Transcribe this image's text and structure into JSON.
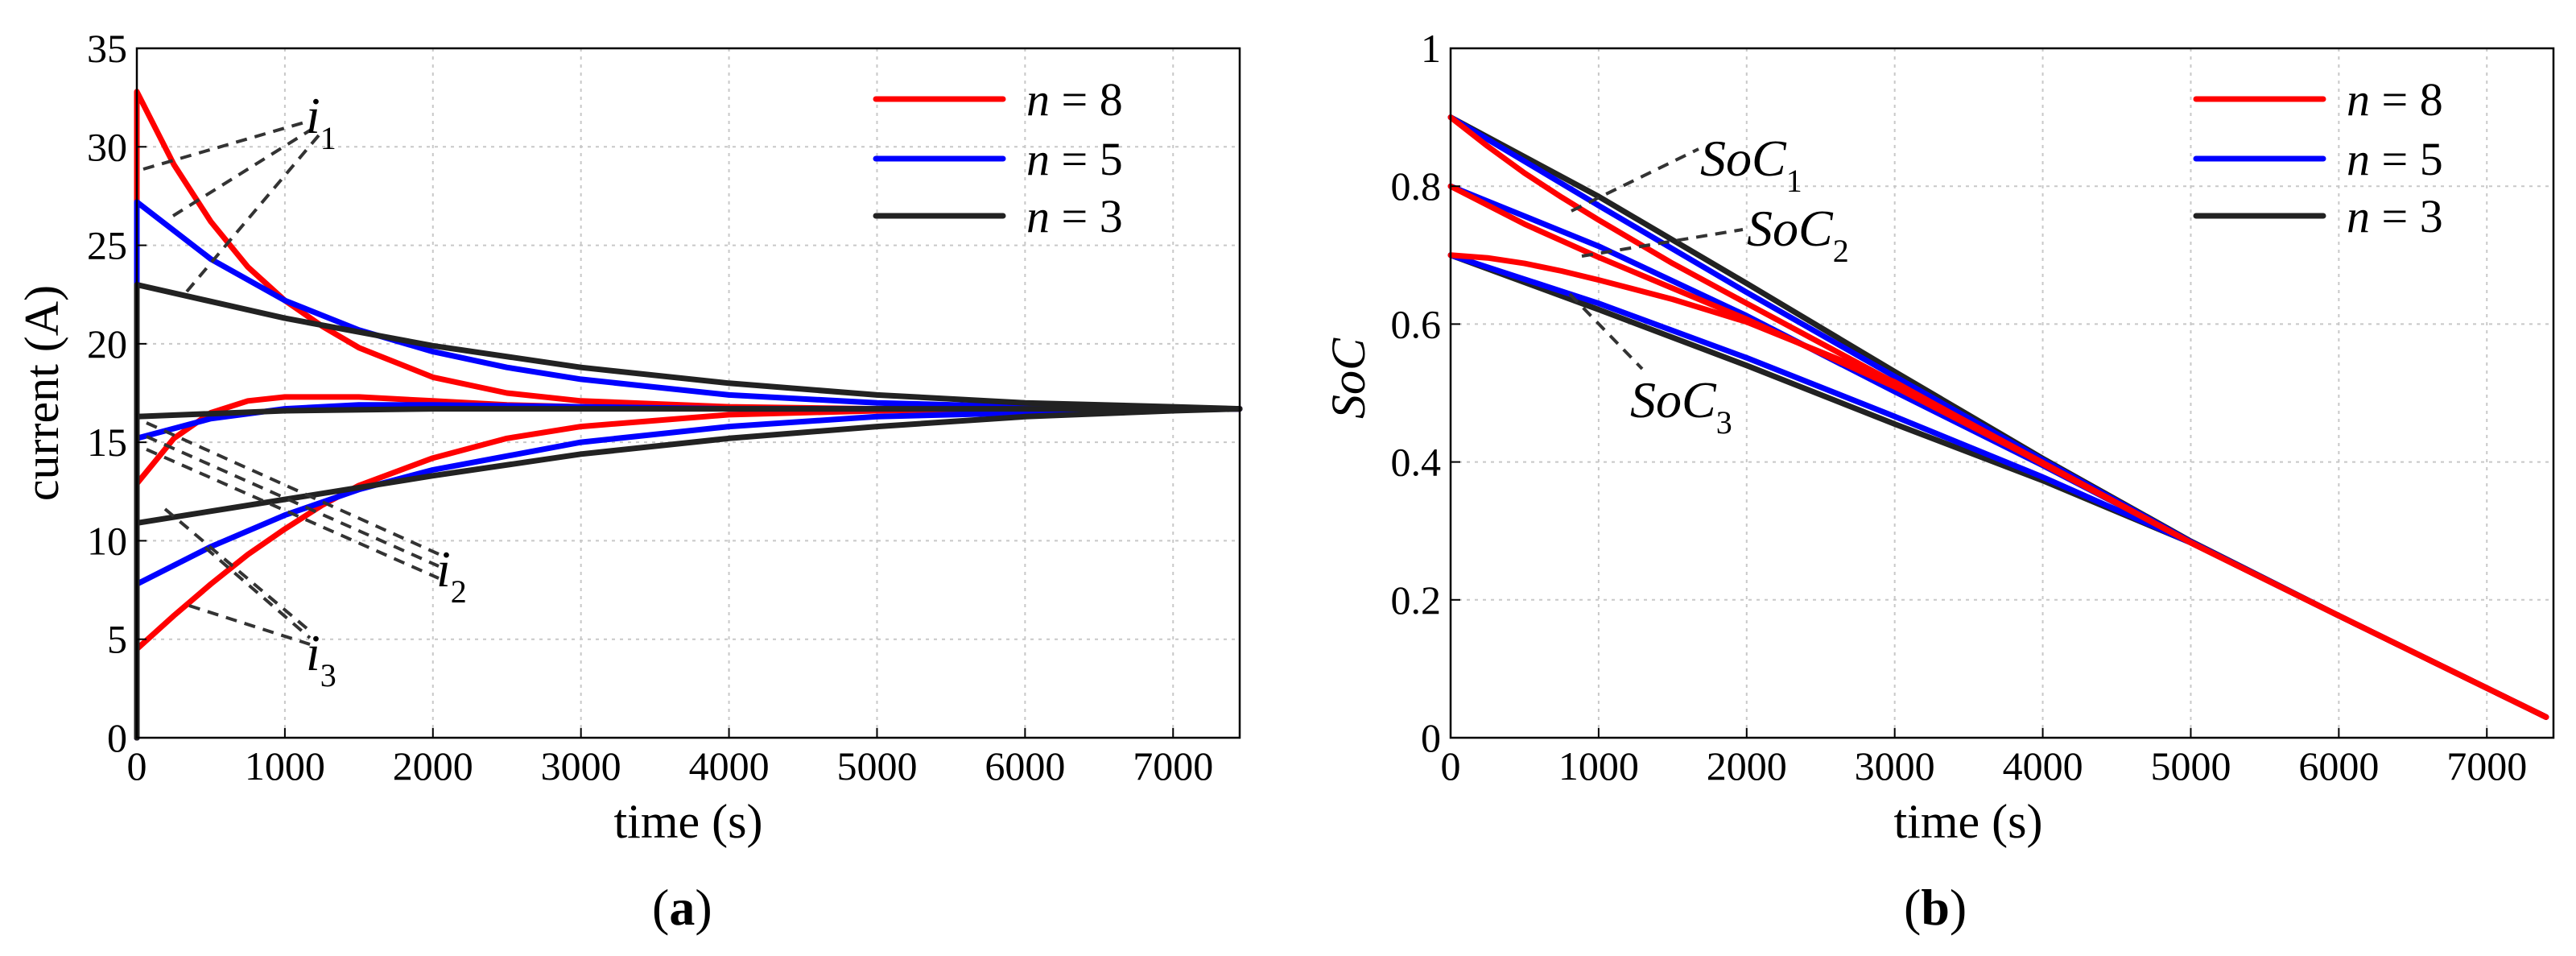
{
  "colors": {
    "n8": "#ff0000",
    "n5": "#0000ff",
    "n3": "#222222"
  },
  "chart_data": [
    {
      "type": "line",
      "panel": "a",
      "caption_open": "(",
      "caption_letter": "a",
      "caption_close": ")",
      "xlabel": "time (s)",
      "ylabel": "current (A)",
      "xlim": [
        0,
        7450
      ],
      "ylim": [
        0,
        35
      ],
      "xticks": [
        "0",
        "1000",
        "2000",
        "3000",
        "4000",
        "5000",
        "6000",
        "7000"
      ],
      "yticks": [
        "0",
        "5",
        "10",
        "15",
        "20",
        "25",
        "30",
        "35"
      ],
      "legend": [
        {
          "key": "n8",
          "var": "n",
          "eq": " = 8"
        },
        {
          "key": "n5",
          "var": "n",
          "eq": " = 5"
        },
        {
          "key": "n3",
          "var": "n",
          "eq": " = 3"
        }
      ],
      "annotations": [
        {
          "label": "i",
          "sub": "1"
        },
        {
          "label": "i",
          "sub": "2"
        },
        {
          "label": "i",
          "sub": "3"
        }
      ],
      "series": [
        {
          "name": "n = 8, i1",
          "key": "n8",
          "x": [
            0,
            250,
            500,
            750,
            1000,
            1250,
            1500,
            2000,
            2500,
            3000,
            4000,
            5000,
            6000,
            7450
          ],
          "y": [
            32.8,
            29.1,
            26.2,
            23.9,
            22.2,
            20.9,
            19.8,
            18.3,
            17.5,
            17.1,
            16.8,
            16.7,
            16.7,
            16.7
          ]
        },
        {
          "name": "n = 8, i2",
          "key": "n8",
          "x": [
            0,
            250,
            500,
            750,
            1000,
            1250,
            1500,
            2000,
            2500,
            3000,
            4000,
            5000,
            7450
          ],
          "y": [
            12.9,
            15.2,
            16.5,
            17.1,
            17.3,
            17.3,
            17.3,
            17.1,
            16.9,
            16.8,
            16.7,
            16.7,
            16.7
          ]
        },
        {
          "name": "n = 8, i3",
          "key": "n8",
          "x": [
            0,
            250,
            500,
            750,
            1000,
            1250,
            1500,
            2000,
            2500,
            3000,
            4000,
            5000,
            6000,
            7450
          ],
          "y": [
            4.5,
            6.2,
            7.8,
            9.3,
            10.6,
            11.8,
            12.8,
            14.2,
            15.2,
            15.8,
            16.4,
            16.6,
            16.7,
            16.7
          ]
        },
        {
          "name": "n = 5, i1",
          "key": "n5",
          "x": [
            0,
            500,
            1000,
            1500,
            2000,
            2500,
            3000,
            4000,
            5000,
            6000,
            7450
          ],
          "y": [
            27.2,
            24.3,
            22.2,
            20.7,
            19.6,
            18.8,
            18.2,
            17.4,
            17.0,
            16.8,
            16.7
          ]
        },
        {
          "name": "n = 5, i2",
          "key": "n5",
          "x": [
            0,
            500,
            1000,
            1500,
            2000,
            3000,
            4000,
            5000,
            7450
          ],
          "y": [
            15.2,
            16.2,
            16.7,
            16.9,
            16.9,
            16.8,
            16.7,
            16.7,
            16.7
          ]
        },
        {
          "name": "n = 5, i3",
          "key": "n5",
          "x": [
            0,
            500,
            1000,
            1500,
            2000,
            3000,
            4000,
            5000,
            6000,
            7450
          ],
          "y": [
            7.8,
            9.7,
            11.3,
            12.6,
            13.6,
            15.0,
            15.8,
            16.3,
            16.5,
            16.7
          ]
        },
        {
          "name": "n = 3, i1",
          "key": "n3",
          "x": [
            0,
            1000,
            2000,
            3000,
            4000,
            5000,
            6000,
            7000,
            7450
          ],
          "y": [
            23.0,
            21.3,
            19.9,
            18.8,
            18.0,
            17.4,
            17.0,
            16.8,
            16.7
          ]
        },
        {
          "name": "n = 3, i2",
          "key": "n3",
          "x": [
            0,
            1000,
            2000,
            3000,
            4000,
            7450
          ],
          "y": [
            16.3,
            16.6,
            16.7,
            16.7,
            16.7,
            16.7
          ]
        },
        {
          "name": "n = 3, i3",
          "key": "n3",
          "x": [
            0,
            1000,
            2000,
            3000,
            4000,
            5000,
            6000,
            7000,
            7450
          ],
          "y": [
            10.9,
            12.1,
            13.3,
            14.4,
            15.2,
            15.8,
            16.3,
            16.6,
            16.7
          ]
        }
      ]
    },
    {
      "type": "line",
      "panel": "b",
      "caption_open": "(",
      "caption_letter": "b",
      "caption_close": ")",
      "xlabel": "time (s)",
      "ylabel": "SoC",
      "xlim": [
        0,
        7450
      ],
      "ylim": [
        0,
        1
      ],
      "xticks": [
        "0",
        "1000",
        "2000",
        "3000",
        "4000",
        "5000",
        "6000",
        "7000"
      ],
      "yticks": [
        "0",
        "0.2",
        "0.4",
        "0.6",
        "0.8",
        "1"
      ],
      "legend": [
        {
          "key": "n8",
          "var": "n",
          "eq": " = 8"
        },
        {
          "key": "n5",
          "var": "n",
          "eq": " = 5"
        },
        {
          "key": "n3",
          "var": "n",
          "eq": " = 3"
        }
      ],
      "annotations": [
        {
          "label": "SoC",
          "sub": "1"
        },
        {
          "label": "SoC",
          "sub": "2"
        },
        {
          "label": "SoC",
          "sub": "3"
        }
      ],
      "series": [
        {
          "name": "n = 3, SoC1",
          "key": "n3",
          "x": [
            0,
            1000,
            2000,
            3000,
            4000,
            5000,
            6000,
            7400
          ],
          "y": [
            0.9,
            0.785,
            0.659,
            0.531,
            0.405,
            0.285,
            0.177,
            0.03
          ]
        },
        {
          "name": "n = 3, SoC3",
          "key": "n3",
          "x": [
            0,
            1000,
            2000,
            3000,
            4000,
            5000,
            6000,
            7400
          ],
          "y": [
            0.7,
            0.621,
            0.54,
            0.455,
            0.373,
            0.283,
            0.177,
            0.03
          ]
        },
        {
          "name": "n = 5, SoC1",
          "key": "n5",
          "x": [
            0,
            1000,
            2000,
            3000,
            4000,
            5000,
            6000,
            7400
          ],
          "y": [
            0.9,
            0.772,
            0.646,
            0.524,
            0.403,
            0.284,
            0.177,
            0.03
          ]
        },
        {
          "name": "n = 5, SoC2",
          "key": "n5",
          "x": [
            0,
            1000,
            2000,
            3000,
            4000,
            5000,
            6000,
            7400
          ],
          "y": [
            0.8,
            0.713,
            0.612,
            0.502,
            0.395,
            0.284,
            0.177,
            0.03
          ]
        },
        {
          "name": "n = 5, SoC3",
          "key": "n5",
          "x": [
            0,
            1000,
            2000,
            3000,
            4000,
            5000,
            6000,
            7400
          ],
          "y": [
            0.7,
            0.63,
            0.551,
            0.466,
            0.378,
            0.283,
            0.177,
            0.03
          ]
        },
        {
          "name": "n = 8, SoC1",
          "key": "n8",
          "x": [
            0,
            250,
            500,
            750,
            1000,
            1500,
            2000,
            3000,
            4000,
            5000,
            6000,
            7400
          ],
          "y": [
            0.9,
            0.858,
            0.819,
            0.784,
            0.751,
            0.688,
            0.63,
            0.515,
            0.399,
            0.283,
            0.177,
            0.03
          ]
        },
        {
          "name": "n = 8, SoC2",
          "key": "n8",
          "x": [
            0,
            500,
            1000,
            1500,
            2000,
            3000,
            4000,
            5000,
            6000,
            7400
          ],
          "y": [
            0.8,
            0.745,
            0.697,
            0.652,
            0.607,
            0.509,
            0.398,
            0.283,
            0.177,
            0.03
          ]
        },
        {
          "name": "n = 8, SoC3",
          "key": "n8",
          "x": [
            0,
            250,
            500,
            750,
            1000,
            1500,
            2000,
            3000,
            4000,
            5000,
            6000,
            7400
          ],
          "y": [
            0.7,
            0.696,
            0.688,
            0.677,
            0.664,
            0.636,
            0.603,
            0.516,
            0.397,
            0.283,
            0.177,
            0.03
          ]
        }
      ]
    }
  ]
}
